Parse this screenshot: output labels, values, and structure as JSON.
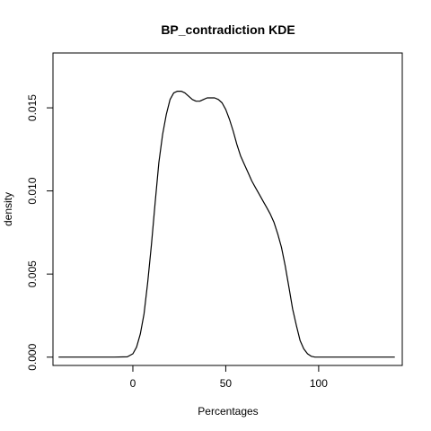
{
  "chart_data": {
    "type": "line",
    "title": "BP_contradiction  KDE",
    "xlabel": "Percentages",
    "ylabel": "density",
    "xlim": [
      -43,
      145
    ],
    "ylim": [
      -0.0005,
      0.0183
    ],
    "x_ticks": [
      0,
      50,
      100
    ],
    "x_tick_labels": [
      "0",
      "50",
      "100"
    ],
    "y_ticks": [
      0,
      0.005,
      0.01,
      0.015
    ],
    "y_tick_labels": [
      "0.000",
      "0.005",
      "0.010",
      "0.015"
    ],
    "grid": false,
    "legend": "none",
    "line_color": "#000000",
    "series": [
      {
        "x": [
          -40,
          -30,
          -20,
          -10,
          -3,
          0,
          2,
          4,
          6,
          8,
          10,
          12,
          14,
          16,
          18,
          20,
          22,
          24,
          26,
          28,
          30,
          32,
          34,
          36,
          38,
          40,
          42,
          44,
          46,
          48,
          50,
          52,
          54,
          56,
          58,
          60,
          62,
          64,
          66,
          68,
          70,
          72,
          74,
          76,
          78,
          80,
          82,
          84,
          86,
          88,
          90,
          92,
          94,
          96,
          98,
          100,
          105,
          110,
          120,
          130,
          141
        ],
        "y": [
          0,
          0,
          0,
          0,
          2e-05,
          0.0002,
          0.0006,
          0.0014,
          0.0026,
          0.0045,
          0.0068,
          0.0093,
          0.0117,
          0.0134,
          0.0146,
          0.0155,
          0.0159,
          0.016,
          0.016,
          0.0159,
          0.0157,
          0.0155,
          0.0154,
          0.0154,
          0.0155,
          0.0156,
          0.0156,
          0.0156,
          0.0155,
          0.0153,
          0.0149,
          0.0143,
          0.0136,
          0.0128,
          0.0121,
          0.0116,
          0.0111,
          0.0106,
          0.0102,
          0.0098,
          0.0094,
          0.009,
          0.0086,
          0.0081,
          0.0074,
          0.0066,
          0.0055,
          0.0042,
          0.0029,
          0.0019,
          0.001,
          0.0005,
          0.0002,
          5e-05,
          0,
          0,
          0,
          0,
          0,
          0,
          0
        ]
      }
    ]
  }
}
